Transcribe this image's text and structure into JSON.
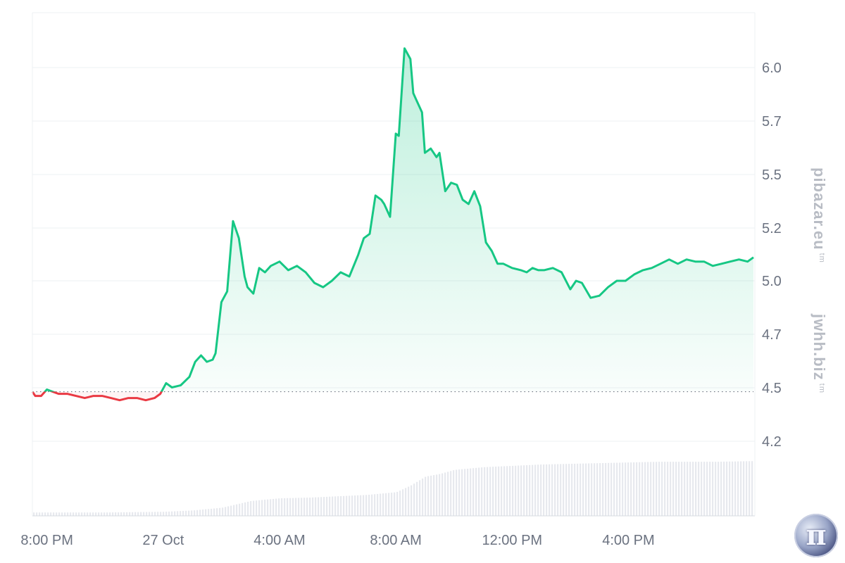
{
  "watermarks": {
    "top": "pibazar.eu",
    "top_tm": "tm",
    "bottom": "jwhh.biz",
    "bottom_tm": "tm"
  },
  "logo": {
    "icon": "pi-coin-icon",
    "glyph": "π"
  },
  "colors": {
    "up_line": "#16c784",
    "down_line": "#ea3943",
    "up_fill": "#16c784",
    "down_fill": "#ea3943",
    "baseline": "#6b7280",
    "grid": "#eef0f3",
    "volume": "#e7e9ee"
  },
  "chart_data": {
    "type": "area",
    "title": "",
    "xlabel": "",
    "ylabel": "",
    "ylim": [
      3.9,
      6.3
    ],
    "y_ticks": [
      4.2,
      4.5,
      4.7,
      5.0,
      5.2,
      5.5,
      5.7,
      6.0
    ],
    "y_tick_labels": [
      "4.2",
      "4.5",
      "4.7",
      "5.0",
      "5.2",
      "5.5",
      "5.7",
      "6.0"
    ],
    "x_range_hours": [
      -4.5,
      20.3
    ],
    "x_ticks_hours": [
      -4,
      0,
      4,
      8,
      12,
      16
    ],
    "x_tick_labels": [
      "8:00 PM",
      "27 Oct",
      "4:00 AM",
      "8:00 AM",
      "12:00 PM",
      "4:00 PM"
    ],
    "baseline": 4.48,
    "price_series": {
      "x_hours": [
        -4.5,
        -4.4,
        -4.2,
        -4.0,
        -3.8,
        -3.6,
        -3.3,
        -3.0,
        -2.7,
        -2.4,
        -2.1,
        -1.8,
        -1.5,
        -1.2,
        -0.9,
        -0.6,
        -0.3,
        -0.1,
        0.1,
        0.3,
        0.6,
        0.9,
        1.1,
        1.3,
        1.5,
        1.7,
        1.8,
        2.0,
        2.2,
        2.4,
        2.6,
        2.8,
        2.9,
        3.1,
        3.3,
        3.5,
        3.7,
        4.0,
        4.3,
        4.6,
        4.9,
        5.2,
        5.5,
        5.8,
        6.1,
        6.4,
        6.7,
        6.9,
        7.1,
        7.3,
        7.5,
        7.6,
        7.8,
        8.0,
        8.1,
        8.3,
        8.5,
        8.6,
        8.7,
        8.9,
        9.0,
        9.2,
        9.4,
        9.5,
        9.7,
        9.9,
        10.1,
        10.3,
        10.5,
        10.7,
        10.9,
        11.1,
        11.3,
        11.5,
        11.7,
        12.0,
        12.3,
        12.5,
        12.7,
        12.9,
        13.1,
        13.4,
        13.7,
        14.0,
        14.2,
        14.4,
        14.7,
        15.0,
        15.3,
        15.6,
        15.9,
        16.2,
        16.5,
        16.8,
        17.1,
        17.4,
        17.7,
        18.0,
        18.3,
        18.6,
        18.9,
        19.2,
        19.5,
        19.8,
        20.1,
        20.3
      ],
      "values": [
        4.48,
        4.46,
        4.46,
        4.49,
        4.48,
        4.47,
        4.47,
        4.46,
        4.45,
        4.46,
        4.46,
        4.45,
        4.44,
        4.45,
        4.45,
        4.44,
        4.45,
        4.47,
        4.52,
        4.5,
        4.51,
        4.55,
        4.62,
        4.65,
        4.62,
        4.63,
        4.66,
        4.9,
        4.95,
        5.28,
        5.2,
        5.02,
        4.97,
        4.94,
        5.06,
        5.04,
        5.07,
        5.09,
        5.05,
        5.07,
        5.04,
        4.99,
        4.97,
        5.0,
        5.04,
        5.02,
        5.12,
        5.2,
        5.22,
        5.4,
        5.38,
        5.36,
        5.3,
        5.69,
        5.68,
        6.09,
        6.04,
        5.88,
        5.85,
        5.79,
        5.6,
        5.62,
        5.58,
        5.6,
        5.42,
        5.46,
        5.45,
        5.38,
        5.36,
        5.42,
        5.35,
        5.18,
        5.14,
        5.08,
        5.08,
        5.06,
        5.05,
        5.04,
        5.06,
        5.05,
        5.05,
        5.06,
        5.04,
        4.96,
        5.0,
        4.99,
        4.92,
        4.93,
        4.97,
        5.0,
        5.0,
        5.03,
        5.05,
        5.06,
        5.08,
        5.1,
        5.08,
        5.1,
        5.09,
        5.09,
        5.07,
        5.08,
        5.09,
        5.1,
        5.09,
        5.11
      ]
    },
    "volume_series": {
      "x_hours": [
        -4.5,
        -2.0,
        0.0,
        1.0,
        2.0,
        3.0,
        4.0,
        5.0,
        6.0,
        7.0,
        8.0,
        8.5,
        9.0,
        9.5,
        10.0,
        11.0,
        12.0,
        13.0,
        14.0,
        15.0,
        16.0,
        17.0,
        18.0,
        19.0,
        20.3
      ],
      "values": [
        0.05,
        0.05,
        0.06,
        0.08,
        0.12,
        0.22,
        0.26,
        0.27,
        0.29,
        0.31,
        0.35,
        0.45,
        0.58,
        0.62,
        0.68,
        0.72,
        0.74,
        0.76,
        0.77,
        0.78,
        0.79,
        0.8,
        0.8,
        0.8,
        0.81
      ]
    }
  }
}
